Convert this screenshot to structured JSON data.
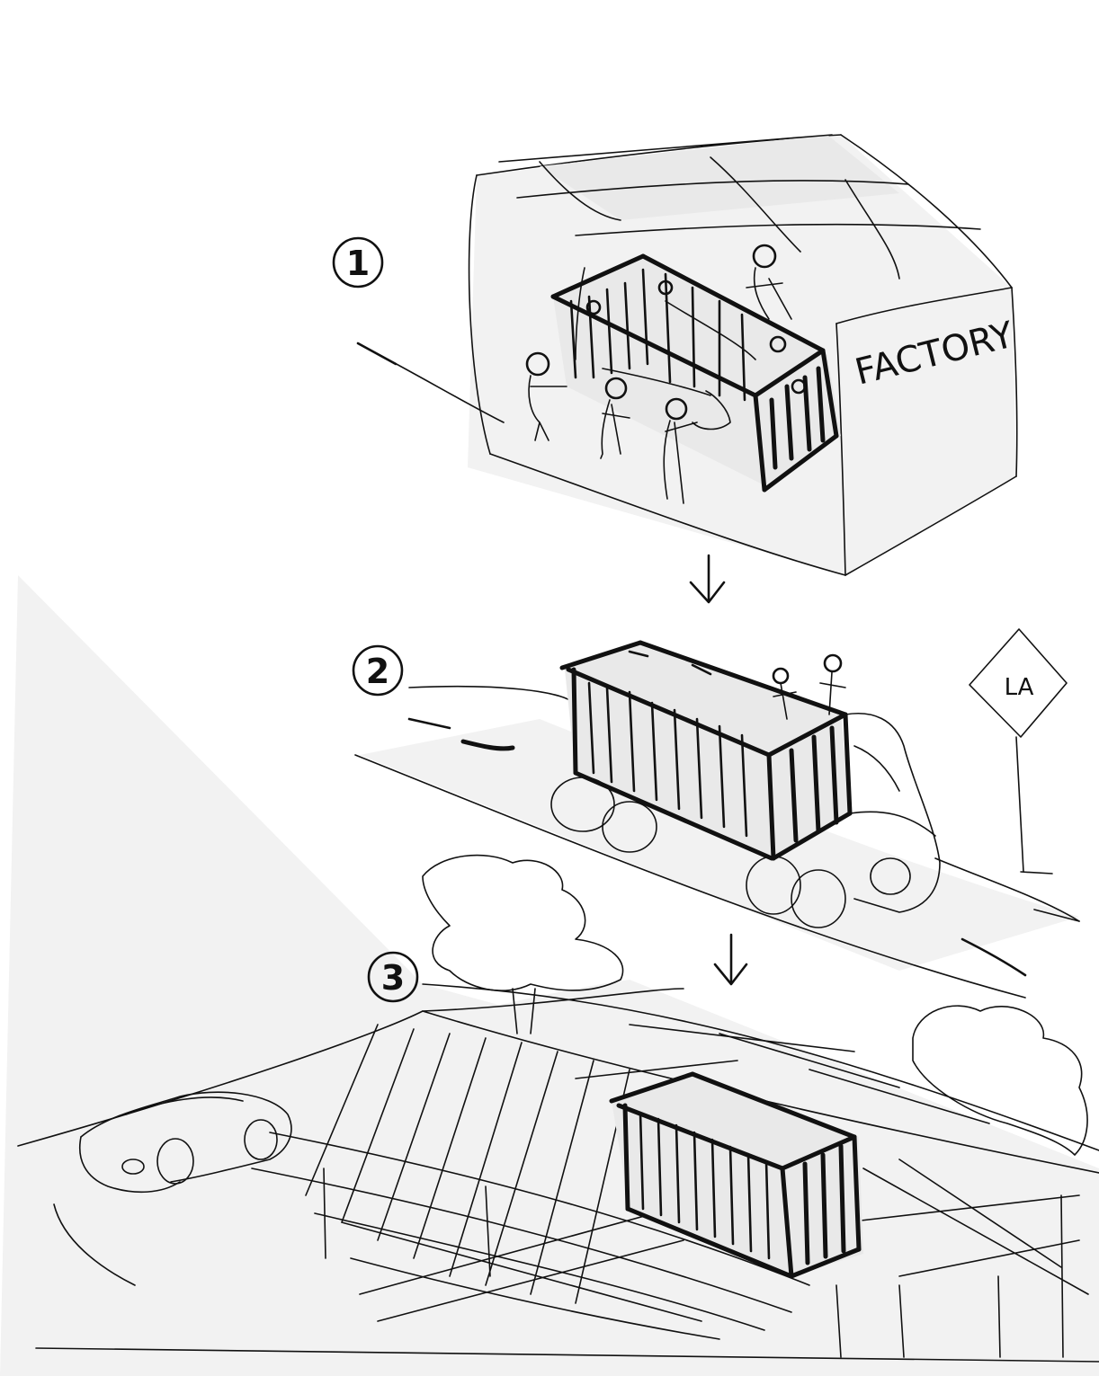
{
  "steps": [
    {
      "number": "1"
    },
    {
      "number": "2"
    },
    {
      "number": "3"
    }
  ],
  "labels": {
    "factory": "FACTORY",
    "road_sign": "LA"
  }
}
